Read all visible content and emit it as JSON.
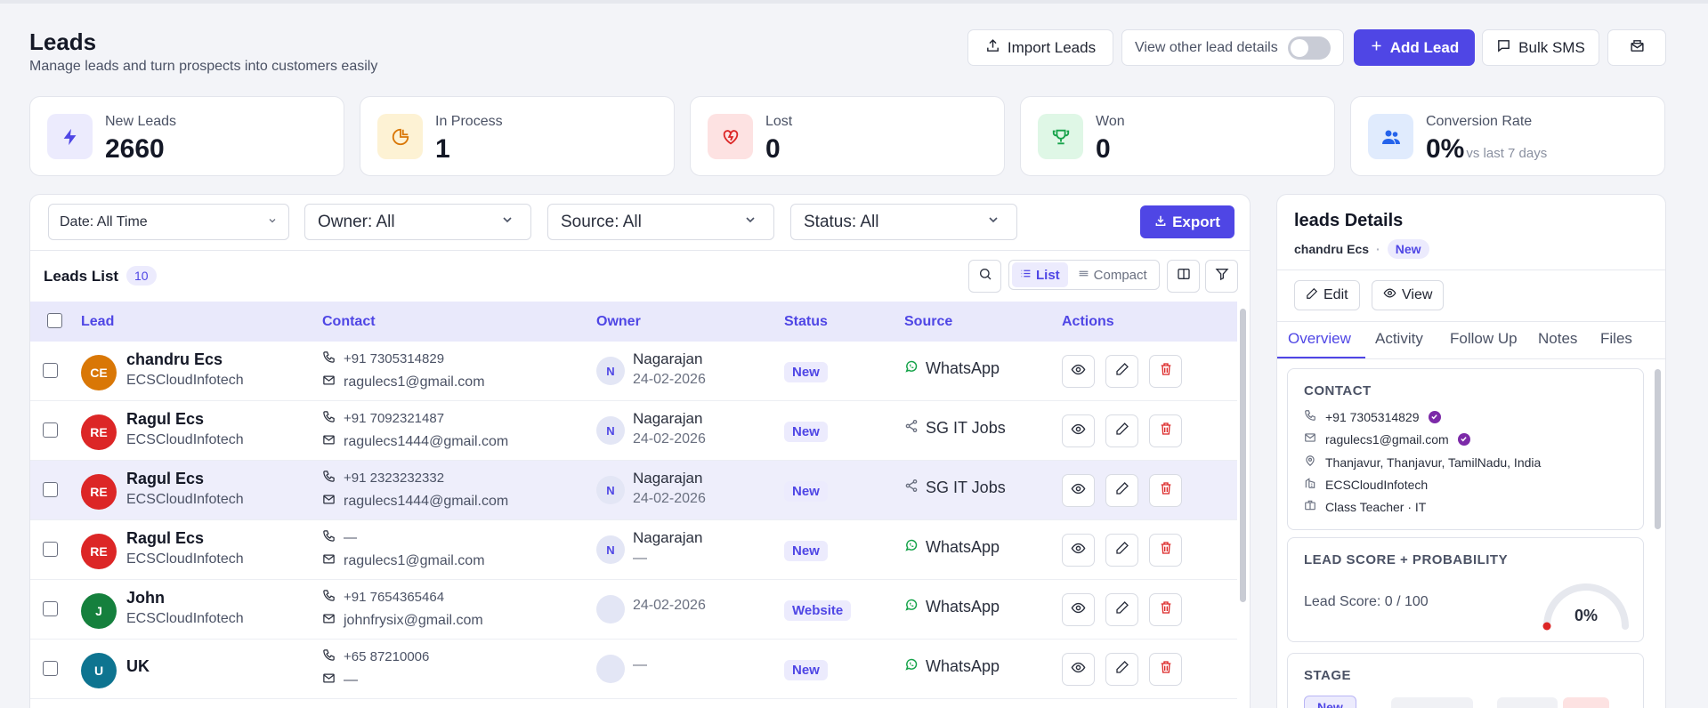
{
  "header": {
    "title": "Leads",
    "subtitle": "Manage leads and turn prospects into customers easily",
    "import_label": "Import Leads",
    "view_other_label": "View other lead details",
    "add_label": "Add Lead",
    "bulk_sms_label": "Bulk SMS"
  },
  "stats": [
    {
      "label": "New Leads",
      "value": "2660",
      "icon": "bolt-icon",
      "color": "#4f46e5"
    },
    {
      "label": "In Process",
      "value": "1",
      "icon": "pie-chart-icon",
      "color": "#d97706"
    },
    {
      "label": "Lost",
      "value": "0",
      "icon": "heart-broken-icon",
      "color": "#dc2626"
    },
    {
      "label": "Won",
      "value": "0",
      "icon": "trophy-icon",
      "color": "#16a34a"
    },
    {
      "label": "Conversion Rate",
      "value": "0%",
      "extra": "vs last 7 days",
      "icon": "users-icon",
      "color": "#2563eb"
    }
  ],
  "filters": {
    "date": "Date: All Time",
    "owner": "Owner: All",
    "source": "Source: All",
    "status": "Status: All",
    "export_label": "Export"
  },
  "list": {
    "title": "Leads List",
    "count": "10",
    "view_list": "List",
    "view_compact": "Compact",
    "columns": {
      "lead": "Lead",
      "contact": "Contact",
      "owner": "Owner",
      "status": "Status",
      "source": "Source",
      "actions": "Actions"
    },
    "rows": [
      {
        "initials": "CE",
        "avatar_color": "#d97706",
        "name": "chandru Ecs",
        "company": "ECSCloudInfotech",
        "phone": "+91 7305314829",
        "email": "ragulecs1@gmail.com",
        "owner_initial": "N",
        "owner": "Nagarajan",
        "date": "24-02-2026",
        "status": "New",
        "source": "WhatsApp",
        "source_icon": "whatsapp-icon"
      },
      {
        "initials": "RE",
        "avatar_color": "#dc2626",
        "name": "Ragul Ecs",
        "company": "ECSCloudInfotech",
        "phone": "+91 7092321487",
        "email": "ragulecs1444@gmail.com",
        "owner_initial": "N",
        "owner": "Nagarajan",
        "date": "24-02-2026",
        "status": "New",
        "source": "SG IT Jobs",
        "source_icon": "share-icon"
      },
      {
        "initials": "RE",
        "avatar_color": "#dc2626",
        "name": "Ragul Ecs",
        "company": "ECSCloudInfotech",
        "phone": "+91 2323232332",
        "email": "ragulecs1444@gmail.com",
        "owner_initial": "N",
        "owner": "Nagarajan",
        "date": "24-02-2026",
        "status": "New",
        "source": "SG IT Jobs",
        "source_icon": "share-icon"
      },
      {
        "initials": "RE",
        "avatar_color": "#dc2626",
        "name": "Ragul Ecs",
        "company": "ECSCloudInfotech",
        "phone": "—",
        "email": "ragulecs1@gmail.com",
        "owner_initial": "N",
        "owner": "Nagarajan",
        "date": "—",
        "status": "New",
        "source": "WhatsApp",
        "source_icon": "whatsapp-icon"
      },
      {
        "initials": "J",
        "avatar_color": "#15803d",
        "name": "John",
        "company": "ECSCloudInfotech",
        "phone": "+91 7654365464",
        "email": "johnfrysix@gmail.com",
        "owner_initial": "",
        "owner": "",
        "date": "24-02-2026",
        "status": "Website",
        "source": "WhatsApp",
        "source_icon": "whatsapp-icon"
      },
      {
        "initials": "U",
        "avatar_color": "#0e7490",
        "name": "UK",
        "company": "",
        "phone": "+65 87210006",
        "email": "—",
        "owner_initial": "",
        "owner": "",
        "date": "—",
        "status": "New",
        "source": "WhatsApp",
        "source_icon": "whatsapp-icon"
      }
    ]
  },
  "details": {
    "title": "leads Details",
    "lead_name": "chandru Ecs",
    "status": "New",
    "edit_label": "Edit",
    "view_label": "View",
    "tabs": [
      "Overview",
      "Activity",
      "Follow Up",
      "Notes",
      "Files"
    ],
    "contact": {
      "heading": "CONTACT",
      "phone": "+91 7305314829",
      "email": "ragulecs1@gmail.com",
      "address": "Thanjavur, Thanjavur, TamilNadu, India",
      "company": "ECSCloudInfotech",
      "role": "Class Teacher · IT"
    },
    "score": {
      "heading": "LEAD SCORE + PROBABILITY",
      "text": "Lead Score: 0 / 100",
      "probability": "0%"
    },
    "stage": {
      "heading": "STAGE",
      "current": "New"
    }
  }
}
